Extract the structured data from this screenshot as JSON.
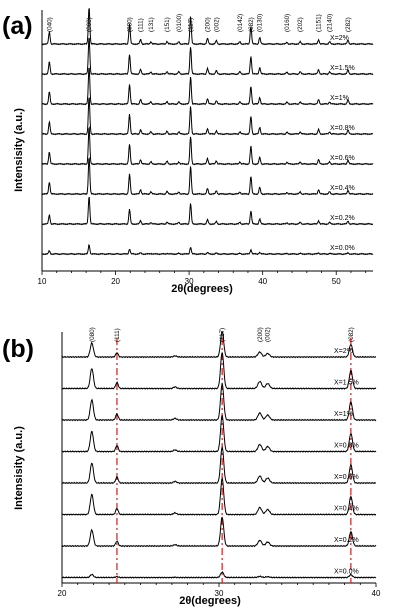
{
  "chart_data": [
    {
      "type": "line",
      "panel_label": "(a)",
      "xlabel": "2θ(degrees)",
      "ylabel": "Intensisity (a.u.)",
      "xlim": [
        10,
        55
      ],
      "xticks": [
        10,
        20,
        30,
        40,
        50
      ],
      "peak_labels": [
        {
          "label": "(040)",
          "x": 11.0
        },
        {
          "label": "(060)",
          "x": 16.4
        },
        {
          "label": "(080)",
          "x": 21.9
        },
        {
          "label": "(111)",
          "x": 23.4
        },
        {
          "label": "(131)",
          "x": 24.8
        },
        {
          "label": "(151)",
          "x": 27.0
        },
        {
          "label": "(0100)",
          "x": 28.6
        },
        {
          "label": "(117)",
          "x": 30.2
        },
        {
          "label": "(200)",
          "x": 32.5
        },
        {
          "label": "(002)",
          "x": 33.7
        },
        {
          "label": "(0142)",
          "x": 36.9
        },
        {
          "label": "(082)",
          "x": 38.4
        },
        {
          "label": "(0130)",
          "x": 39.6
        },
        {
          "label": "(0160)",
          "x": 43.3
        },
        {
          "label": "(202)",
          "x": 45.1
        },
        {
          "label": "(1151)",
          "x": 47.6
        },
        {
          "label": "(2140)",
          "x": 49.1
        },
        {
          "label": "(282)",
          "x": 51.6
        }
      ],
      "peaks": [
        {
          "x": 11.0,
          "h": 0.55
        },
        {
          "x": 16.4,
          "h": 1.7
        },
        {
          "x": 21.9,
          "h": 0.9
        },
        {
          "x": 23.4,
          "h": 0.2
        },
        {
          "x": 24.8,
          "h": 0.1
        },
        {
          "x": 27.0,
          "h": 0.12
        },
        {
          "x": 28.6,
          "h": 0.1
        },
        {
          "x": 30.2,
          "h": 1.25
        },
        {
          "x": 32.5,
          "h": 0.25
        },
        {
          "x": 33.7,
          "h": 0.15
        },
        {
          "x": 36.9,
          "h": 0.1
        },
        {
          "x": 38.4,
          "h": 0.8
        },
        {
          "x": 39.6,
          "h": 0.3
        },
        {
          "x": 43.3,
          "h": 0.08
        },
        {
          "x": 45.1,
          "h": 0.1
        },
        {
          "x": 47.6,
          "h": 0.2
        },
        {
          "x": 49.1,
          "h": 0.1
        },
        {
          "x": 51.6,
          "h": 0.18
        }
      ],
      "series": [
        {
          "name": "X=2%",
          "scale": 1.0
        },
        {
          "name": "X=1.5%",
          "scale": 1.0
        },
        {
          "name": "X=1%",
          "scale": 1.0
        },
        {
          "name": "X=0.8%",
          "scale": 1.0
        },
        {
          "name": "X=0.6%",
          "scale": 1.0
        },
        {
          "name": "X=0.4%",
          "scale": 1.0
        },
        {
          "name": "X=0.2%",
          "scale": 0.75
        },
        {
          "name": "X=0.0%",
          "scale": 0.25
        }
      ]
    },
    {
      "type": "line",
      "panel_label": "(b)",
      "xlabel": "2θ(degrees)",
      "ylabel": "Intensisity (a.u.)",
      "xlim": [
        20,
        40
      ],
      "xticks": [
        20,
        30,
        40
      ],
      "reference_lines": [
        23.5,
        30.2,
        38.4
      ],
      "reference_color": "#cc1f1f",
      "peak_labels": [
        {
          "label": "(080)",
          "x": 21.9
        },
        {
          "label": "(111)",
          "x": 23.5
        },
        {
          "label": "(117)",
          "x": 30.2
        },
        {
          "label": "(200)",
          "x": 32.6
        },
        {
          "label": "(002)",
          "x": 33.1
        },
        {
          "label": "(082)",
          "x": 38.4
        }
      ],
      "peaks": [
        {
          "x": 21.9,
          "h": 1.0,
          "w": 0.1
        },
        {
          "x": 23.5,
          "h": 0.3,
          "w": 0.08
        },
        {
          "x": 27.2,
          "h": 0.08,
          "w": 0.1
        },
        {
          "x": 30.2,
          "h": 1.8,
          "w": 0.1
        },
        {
          "x": 32.6,
          "h": 0.35,
          "w": 0.12
        },
        {
          "x": 33.1,
          "h": 0.25,
          "w": 0.12
        },
        {
          "x": 38.4,
          "h": 0.9,
          "w": 0.1
        }
      ],
      "series": [
        {
          "name": "X=2%",
          "scale": 0.7
        },
        {
          "name": "X=1.5%",
          "scale": 1.0
        },
        {
          "name": "X=1%",
          "scale": 1.0
        },
        {
          "name": "X=0.8%",
          "scale": 1.0
        },
        {
          "name": "X=0.6%",
          "scale": 1.0
        },
        {
          "name": "X=0.4%",
          "scale": 1.0
        },
        {
          "name": "X=0.2%",
          "scale": 0.8
        },
        {
          "name": "X=0.0%",
          "scale": 0.15
        }
      ]
    }
  ]
}
